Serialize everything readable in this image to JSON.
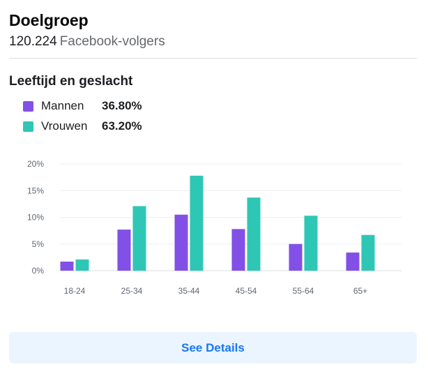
{
  "header": {
    "title": "Doelgroep",
    "follower_count": "120.224",
    "follower_label": "Facebook-volgers"
  },
  "section": {
    "title": "Leeftijd en geslacht"
  },
  "legend": [
    {
      "name": "Mannen",
      "value": "36.80%",
      "color": "#8250e6"
    },
    {
      "name": "Vrouwen",
      "value": "63.20%",
      "color": "#2ec7b5"
    }
  ],
  "chart_data": {
    "type": "bar",
    "categories": [
      "18-24",
      "25-34",
      "35-44",
      "45-54",
      "55-64",
      "65+"
    ],
    "series": [
      {
        "name": "Mannen",
        "values": [
          1.7,
          7.7,
          10.5,
          7.8,
          5.0,
          3.4
        ],
        "color": "#8250e6"
      },
      {
        "name": "Vrouwen",
        "values": [
          2.1,
          12.1,
          17.8,
          13.7,
          10.3,
          6.7
        ],
        "color": "#2ec7b5"
      }
    ],
    "yticks": [
      "0%",
      "5%",
      "10%",
      "15%",
      "20%"
    ],
    "ylim": [
      0,
      20
    ],
    "grid": true,
    "title": "",
    "xlabel": "",
    "ylabel": ""
  },
  "actions": {
    "see_details": "See Details"
  }
}
